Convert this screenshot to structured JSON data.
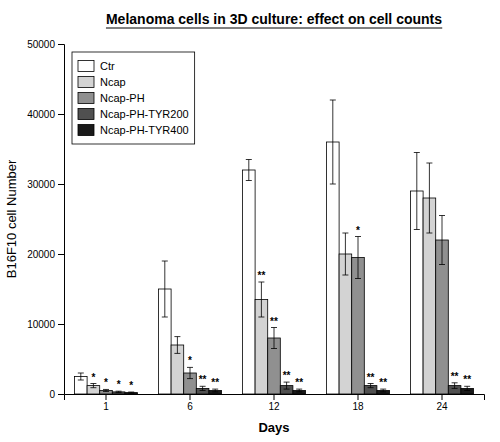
{
  "chart_data": {
    "type": "bar",
    "title": "Melanoma cells in 3D culture: effect on cell counts",
    "xlabel": "Days",
    "ylabel": "B16F10 cell Number",
    "categories": [
      "1",
      "6",
      "12",
      "18",
      "24"
    ],
    "series": [
      {
        "name": "Ctr",
        "color": "#ffffff",
        "values": [
          2500,
          15000,
          32000,
          36000,
          29000
        ],
        "errors": [
          500,
          4000,
          1500,
          6000,
          5500
        ],
        "significance": [
          null,
          null,
          null,
          null,
          null
        ]
      },
      {
        "name": "Ncap",
        "color": "#d3d3d3",
        "values": [
          1200,
          7000,
          13500,
          20000,
          28000
        ],
        "errors": [
          300,
          1200,
          2500,
          3000,
          5000
        ],
        "significance": [
          "*",
          null,
          "**",
          null,
          null
        ]
      },
      {
        "name": "Ncap-PH",
        "color": "#909090",
        "values": [
          500,
          3000,
          8000,
          19500,
          22000
        ],
        "errors": [
          150,
          800,
          1500,
          3000,
          3500
        ],
        "significance": [
          "*",
          "*",
          "**",
          "*",
          null
        ]
      },
      {
        "name": "Ncap-PH-TYR200",
        "color": "#505050",
        "values": [
          300,
          800,
          1200,
          1200,
          1200
        ],
        "errors": [
          100,
          300,
          500,
          300,
          400
        ],
        "significance": [
          "*",
          "**",
          "**",
          "**",
          "**"
        ]
      },
      {
        "name": "Ncap-PH-TYR400",
        "color": "#1a1a1a",
        "values": [
          200,
          500,
          500,
          500,
          800
        ],
        "errors": [
          80,
          200,
          200,
          200,
          300
        ],
        "significance": [
          "*",
          "**",
          "**",
          "**",
          "**"
        ]
      }
    ],
    "ylim": [
      0,
      50000
    ],
    "yticks": [
      0,
      10000,
      20000,
      30000,
      40000,
      50000
    ],
    "legend": "upper left",
    "grid": false
  }
}
